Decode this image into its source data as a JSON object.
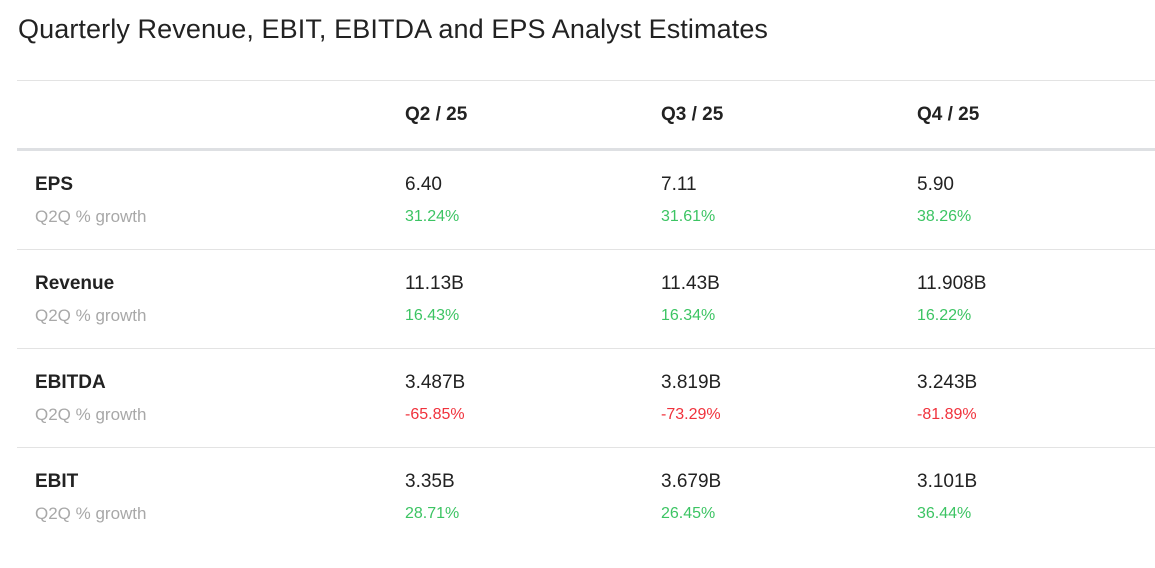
{
  "title": "Quarterly Revenue, EBIT, EBITDA and EPS Analyst Estimates",
  "colors": {
    "positive": "#3cc463",
    "negative": "#f0323c"
  },
  "columns": [
    "Q2 / 25",
    "Q3 / 25",
    "Q4 / 25"
  ],
  "rows": [
    {
      "label": "EPS",
      "sublabel": "Q2Q % growth",
      "values": [
        "6.40",
        "7.11",
        "5.90"
      ],
      "growth": [
        "31.24%",
        "31.61%",
        "38.26%"
      ]
    },
    {
      "label": "Revenue",
      "sublabel": "Q2Q % growth",
      "values": [
        "11.13B",
        "11.43B",
        "11.908B"
      ],
      "growth": [
        "16.43%",
        "16.34%",
        "16.22%"
      ]
    },
    {
      "label": "EBITDA",
      "sublabel": "Q2Q % growth",
      "values": [
        "3.487B",
        "3.819B",
        "3.243B"
      ],
      "growth": [
        "-65.85%",
        "-73.29%",
        "-81.89%"
      ]
    },
    {
      "label": "EBIT",
      "sublabel": "Q2Q % growth",
      "values": [
        "3.35B",
        "3.679B",
        "3.101B"
      ],
      "growth": [
        "28.71%",
        "26.45%",
        "36.44%"
      ]
    }
  ]
}
